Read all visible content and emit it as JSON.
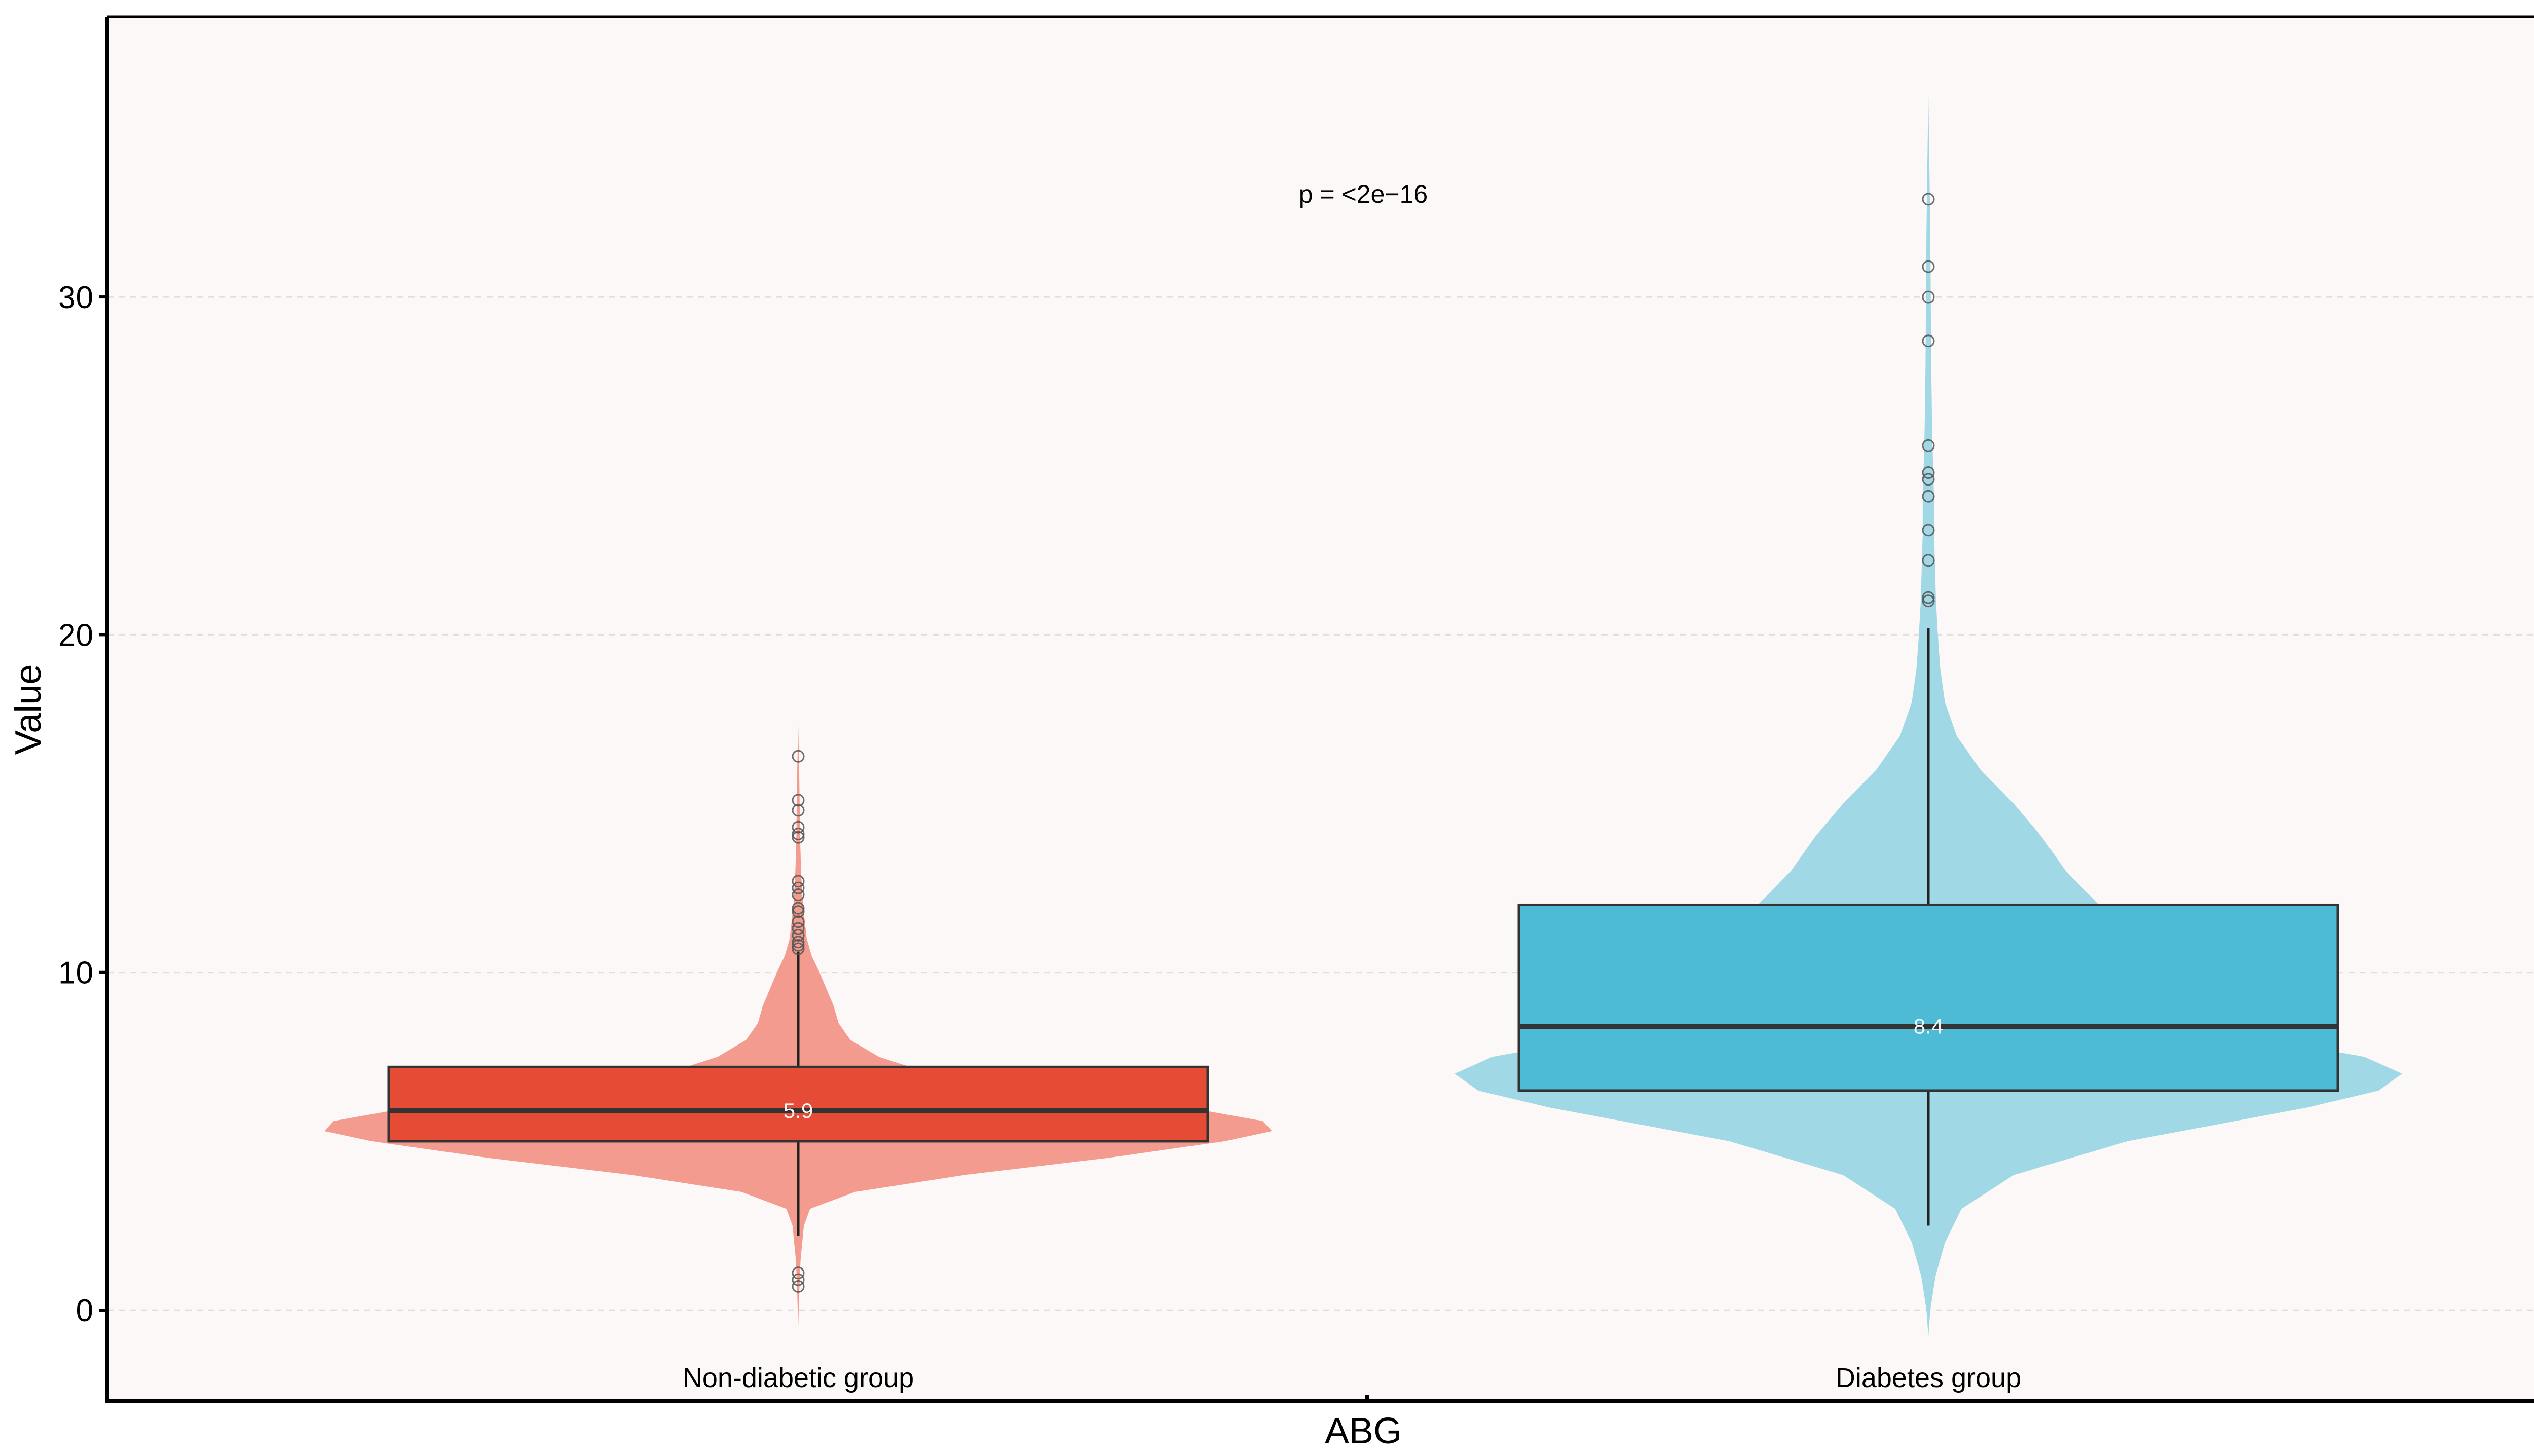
{
  "chart_data": {
    "type": "violin",
    "title": "",
    "xlabel": "ABG",
    "ylabel": "Value",
    "ylim": [
      -2.7,
      38.3
    ],
    "yticks": [
      0,
      10,
      20,
      30
    ],
    "grid": "horizontal-dashed",
    "annotation": "p = <2e−16",
    "categories": [
      "Non-diabetic group",
      "Diabetes group"
    ],
    "series": [
      {
        "name": "Non-diabetic group",
        "violin_color": "#f39b8f",
        "box_color": "#e64b35",
        "q1": 5.0,
        "median": 5.9,
        "q3": 7.2,
        "whisker_low": 2.2,
        "whisker_high": 10.6,
        "median_label": "5.9",
        "outliers": [
          16.4,
          15.1,
          14.8,
          14.3,
          14.1,
          14.0,
          12.7,
          12.5,
          12.3,
          11.9,
          11.8,
          11.5,
          11.3,
          11.1,
          10.9,
          10.8,
          10.7,
          1.1,
          0.9,
          0.7
        ],
        "density": [
          [
            -0.5,
            0.0
          ],
          [
            0.5,
            0.002
          ],
          [
            1.5,
            0.005
          ],
          [
            2.5,
            0.012
          ],
          [
            3.0,
            0.025
          ],
          [
            3.5,
            0.12
          ],
          [
            4.0,
            0.35
          ],
          [
            4.5,
            0.65
          ],
          [
            5.0,
            0.9
          ],
          [
            5.3,
            1.0
          ],
          [
            5.6,
            0.98
          ],
          [
            6.0,
            0.82
          ],
          [
            6.5,
            0.52
          ],
          [
            7.0,
            0.28
          ],
          [
            7.5,
            0.17
          ],
          [
            8.0,
            0.11
          ],
          [
            8.5,
            0.085
          ],
          [
            9.0,
            0.075
          ],
          [
            9.5,
            0.06
          ],
          [
            10.0,
            0.045
          ],
          [
            10.5,
            0.028
          ],
          [
            11.0,
            0.018
          ],
          [
            12.0,
            0.01
          ],
          [
            13.0,
            0.006
          ],
          [
            14.0,
            0.004
          ],
          [
            15.0,
            0.003
          ],
          [
            16.0,
            0.002
          ],
          [
            17.3,
            0.0
          ]
        ]
      },
      {
        "name": "Diabetes group",
        "violin_color": "#a0d8e6",
        "box_color": "#4dbbd5",
        "q1": 6.5,
        "median": 8.4,
        "q3": 12.0,
        "whisker_low": 2.5,
        "whisker_high": 20.2,
        "median_label": "8.4",
        "outliers": [
          32.9,
          30.9,
          30.0,
          28.7,
          25.6,
          24.8,
          24.6,
          24.1,
          23.1,
          22.2,
          21.1,
          21.0
        ],
        "density": [
          [
            -0.8,
            0.0
          ],
          [
            0.0,
            0.004
          ],
          [
            1.0,
            0.015
          ],
          [
            2.0,
            0.035
          ],
          [
            3.0,
            0.07
          ],
          [
            4.0,
            0.18
          ],
          [
            5.0,
            0.42
          ],
          [
            6.0,
            0.8
          ],
          [
            6.5,
            0.95
          ],
          [
            7.0,
            1.0
          ],
          [
            7.5,
            0.92
          ],
          [
            8.0,
            0.72
          ],
          [
            9.0,
            0.54
          ],
          [
            10.0,
            0.47
          ],
          [
            11.0,
            0.42
          ],
          [
            12.0,
            0.36
          ],
          [
            13.0,
            0.29
          ],
          [
            14.0,
            0.24
          ],
          [
            15.0,
            0.18
          ],
          [
            16.0,
            0.11
          ],
          [
            17.0,
            0.06
          ],
          [
            18.0,
            0.035
          ],
          [
            19.0,
            0.025
          ],
          [
            20.0,
            0.02
          ],
          [
            21.0,
            0.016
          ],
          [
            22.0,
            0.014
          ],
          [
            23.0,
            0.012
          ],
          [
            24.0,
            0.012
          ],
          [
            25.0,
            0.01
          ],
          [
            26.0,
            0.008
          ],
          [
            28.0,
            0.006
          ],
          [
            30.0,
            0.005
          ],
          [
            32.0,
            0.004
          ],
          [
            34.0,
            0.002
          ],
          [
            36.0,
            0.0
          ]
        ]
      }
    ]
  }
}
